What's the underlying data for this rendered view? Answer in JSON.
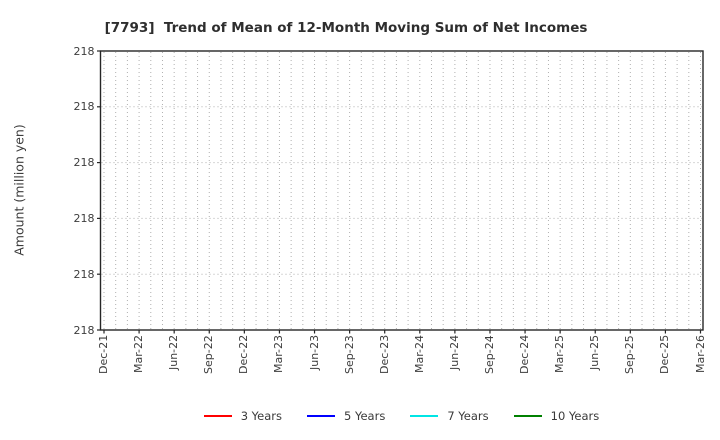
{
  "title": "[7793]  Trend of Mean of 12-Month Moving Sum of Net Incomes",
  "y_axis_label": "Amount (million yen)",
  "legend": {
    "items": [
      {
        "label": "3 Years",
        "color": "#ff0000"
      },
      {
        "label": "5 Years",
        "color": "#0000ff"
      },
      {
        "label": "7 Years",
        "color": "#00e5e5"
      },
      {
        "label": "10 Years",
        "color": "#008000"
      }
    ]
  },
  "chart_data": {
    "type": "line",
    "title": "[7793]  Trend of Mean of 12-Month Moving Sum of Net Incomes",
    "ylabel": "Amount (million yen)",
    "xlabel": "",
    "x_tick_labels": [
      "Dec-21",
      "Mar-22",
      "Jun-22",
      "Sep-22",
      "Dec-22",
      "Mar-23",
      "Jun-23",
      "Sep-23",
      "Dec-23",
      "Mar-24",
      "Jun-24",
      "Sep-24",
      "Dec-24",
      "Mar-25",
      "Jun-25",
      "Sep-25",
      "Dec-25",
      "Mar-26"
    ],
    "x_total_months": 51,
    "x_tick_every_months": 3,
    "x_grid_every_months": 1,
    "y_tick_labels": [
      "218",
      "218",
      "218",
      "218",
      "218",
      "218"
    ],
    "y_value_constant": 218,
    "grid": "dotted",
    "grid_color": "#b0b0b0",
    "legend_position": "bottom-center",
    "series": [
      {
        "name": "3 Years",
        "color": "#ff0000",
        "values": []
      },
      {
        "name": "5 Years",
        "color": "#0000ff",
        "values": []
      },
      {
        "name": "7 Years",
        "color": "#00e5e5",
        "values": []
      },
      {
        "name": "10 Years",
        "color": "#008000",
        "values": []
      }
    ],
    "note": "plot area shows grid only; no series lines are visible"
  }
}
